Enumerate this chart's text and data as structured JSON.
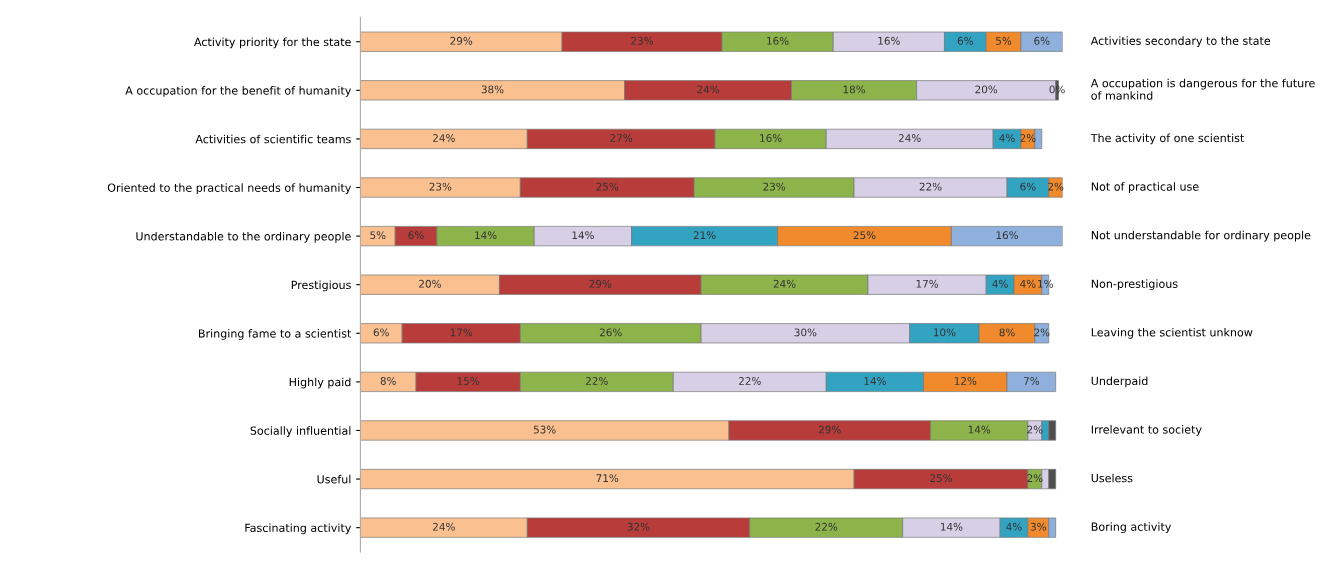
{
  "chart_data": {
    "type": "bar",
    "orientation": "horizontal",
    "stacked": true,
    "tick_labels": "y",
    "grid": false,
    "legend": false,
    "xlim": [
      0,
      101
    ],
    "categories": [
      "Activity priority for the state",
      "A occupation for the benefit of humanity",
      "Activities of scientific teams",
      "Oriented to the practical needs of humanity",
      "Understandable to the ordinary people",
      "Prestigious",
      "Bringing fame to a scientist",
      "Highly paid",
      "Socially influential",
      "Useful",
      "Fascinating activity"
    ],
    "annotations": [
      "Activities secondary to the state",
      "A occupation is dangerous for the future of mankind",
      "The activity of one scientist",
      "Not of practical use",
      "Not understandable for ordinary people",
      "Non-prestigious",
      "Leaving the scientist unknow",
      "Underpaid",
      "Irrelevant to society",
      "Useless",
      "Boring activity"
    ],
    "series": [
      {
        "color": "#fac090",
        "values": [
          29,
          38,
          24,
          23,
          5,
          20,
          6,
          8,
          53,
          71,
          24
        ],
        "value_labels": [
          "29%",
          "38%",
          "24%",
          "23%",
          "5%",
          "20%",
          "6%",
          "8%",
          "53%",
          "71%",
          "24%"
        ]
      },
      {
        "color": "#b83c3a",
        "values": [
          23,
          24,
          27,
          25,
          6,
          29,
          17,
          15,
          29,
          25,
          32
        ],
        "value_labels": [
          "23%",
          "24%",
          "27%",
          "25%",
          "6%",
          "29%",
          "17%",
          "15%",
          "29%",
          "25%",
          "32%"
        ]
      },
      {
        "color": "#8db44a",
        "values": [
          16,
          18,
          16,
          23,
          14,
          24,
          26,
          22,
          14,
          2,
          22
        ],
        "value_labels": [
          "16%",
          "18%",
          "16%",
          "23%",
          "14%",
          "24%",
          "26%",
          "22%",
          "14%",
          "2%",
          "22%"
        ]
      },
      {
        "color": "#d6cfe6",
        "values": [
          16,
          20,
          24,
          22,
          14,
          17,
          30,
          22,
          2,
          1,
          14
        ],
        "value_labels": [
          "16%",
          "20%",
          "24%",
          "22%",
          "14%",
          "17%",
          "30%",
          "22%",
          "2%",
          null,
          "14%"
        ]
      },
      {
        "color": "#33a3c2",
        "values": [
          6,
          null,
          4,
          6,
          21,
          4,
          10,
          14,
          1,
          null,
          4
        ],
        "value_labels": [
          "6%",
          null,
          "4%",
          "6%",
          "21%",
          "4%",
          "10%",
          "14%",
          null,
          null,
          "4%"
        ]
      },
      {
        "color": "#f08a2c",
        "values": [
          5,
          null,
          2,
          2,
          25,
          4,
          8,
          12,
          null,
          null,
          3
        ],
        "value_labels": [
          "5%",
          null,
          "2%",
          "2%",
          "25%",
          "4%",
          "8%",
          "12%",
          null,
          null,
          "3%"
        ]
      },
      {
        "color": "#8fb0dc",
        "values": [
          6,
          null,
          1,
          null,
          16,
          1,
          2,
          7,
          null,
          null,
          1
        ],
        "value_labels": [
          "6%",
          null,
          null,
          null,
          "16%",
          "1%",
          "2%",
          "7%",
          null,
          null,
          null
        ]
      },
      {
        "color": "#4f4f4f",
        "values": [
          null,
          0.4,
          null,
          null,
          null,
          null,
          null,
          null,
          1,
          1,
          null
        ],
        "value_labels": [
          null,
          "0%",
          null,
          null,
          null,
          null,
          null,
          null,
          null,
          null,
          null
        ]
      }
    ]
  }
}
